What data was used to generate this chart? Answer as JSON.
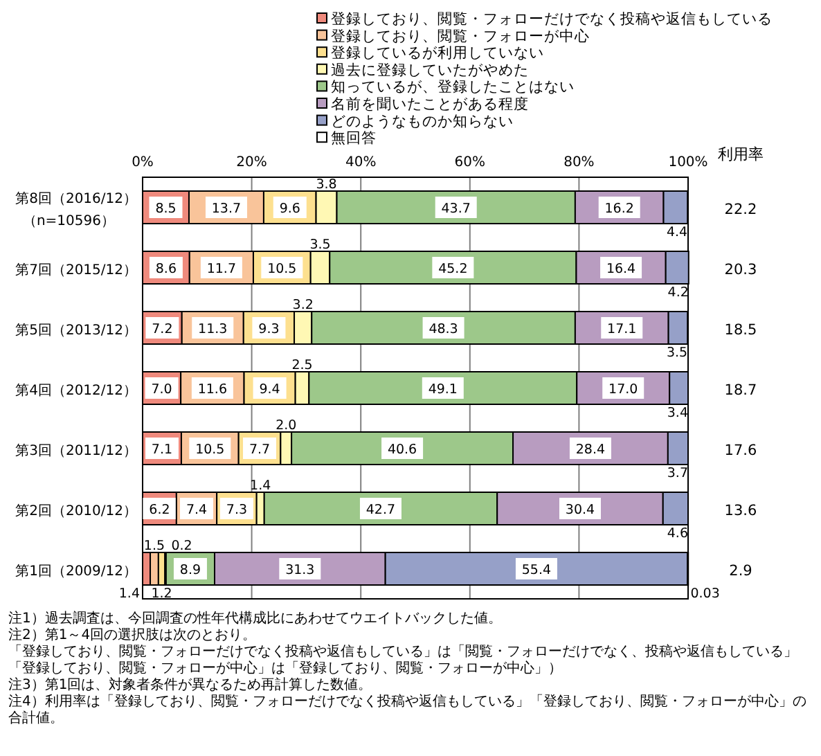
{
  "chart_data": [
    {
      "type": "bar",
      "orientation": "horizontal",
      "stacked": true,
      "categories": [
        "第8回（2016/12）（n=10596）",
        "第7回（2015/12）",
        "第5回（2013/12）",
        "第4回（2012/12）",
        "第3回（2011/12）",
        "第2回（2010/12）",
        "第1回（2009/12）"
      ],
      "series": [
        {
          "name": "登録しており、閲覧・フォローだけでなく投稿や返信もしている",
          "color": "#ef8a7d",
          "values": [
            8.5,
            8.6,
            7.2,
            7.0,
            7.1,
            6.2,
            1.4
          ],
          "value_labels": [
            "8.5",
            "8.6",
            "7.2",
            "7.0",
            "7.1",
            "6.2",
            "1.4"
          ]
        },
        {
          "name": "登録しており、閲覧・フォローが中心",
          "color": "#f9c49a",
          "values": [
            13.7,
            11.7,
            11.3,
            11.6,
            10.5,
            7.4,
            1.5
          ],
          "value_labels": [
            "13.7",
            "11.7",
            "11.3",
            "11.6",
            "10.5",
            "7.4",
            "1.5"
          ]
        },
        {
          "name": "登録しているが利用していない",
          "color": "#fde08f",
          "values": [
            9.6,
            10.5,
            9.3,
            9.4,
            7.7,
            7.3,
            1.2
          ],
          "value_labels": [
            "9.6",
            "10.5",
            "9.3",
            "9.4",
            "7.7",
            "7.3",
            "1.2"
          ]
        },
        {
          "name": "過去に登録していたがやめた",
          "color": "#fff8b4",
          "values": [
            3.8,
            3.5,
            3.2,
            2.5,
            2.0,
            1.4,
            0.2
          ],
          "value_labels": [
            "3.8",
            "3.5",
            "3.2",
            "2.5",
            "2.0",
            "1.4",
            "0.2"
          ]
        },
        {
          "name": "知っているが、登録したことはない",
          "color": "#9dc88a",
          "values": [
            43.7,
            45.2,
            48.3,
            49.1,
            40.6,
            42.7,
            8.9
          ],
          "value_labels": [
            "43.7",
            "45.2",
            "48.3",
            "49.1",
            "40.6",
            "42.7",
            "8.9"
          ]
        },
        {
          "name": "名前を聞いたことがある程度",
          "color": "#b89cc0",
          "values": [
            16.2,
            16.4,
            17.1,
            17.0,
            28.4,
            30.4,
            31.3
          ],
          "value_labels": [
            "16.2",
            "16.4",
            "17.1",
            "17.0",
            "28.4",
            "30.4",
            "31.3"
          ]
        },
        {
          "name": "どのようなものか知らない",
          "color": "#96a0c8",
          "values": [
            4.4,
            4.2,
            3.5,
            3.4,
            3.7,
            4.6,
            55.4
          ],
          "value_labels": [
            "4.4",
            "4.2",
            "3.5",
            "3.4",
            "3.7",
            "4.6",
            "55.4"
          ]
        },
        {
          "name": "無回答",
          "color": "#ffffff",
          "values": [
            null,
            null,
            null,
            null,
            null,
            null,
            0.03
          ],
          "value_labels": [
            null,
            null,
            null,
            null,
            null,
            null,
            "0.03"
          ]
        }
      ],
      "xlim": [
        0,
        100
      ],
      "xticks": [
        {
          "value": 0,
          "label": "0%"
        },
        {
          "value": 20,
          "label": "20%"
        },
        {
          "value": 40,
          "label": "40%"
        },
        {
          "value": 60,
          "label": "60%"
        },
        {
          "value": 80,
          "label": "80%"
        },
        {
          "value": 100,
          "label": "100%"
        }
      ],
      "grid": "x",
      "legend": "top",
      "annotations": [
        "注1）過去調査は、今回調査の性年代構成比にあわせてウエイトバックした値。",
        "注2）第1～4回の選択肢は次のとおり。",
        "「登録しており、閲覧・フォローだけでなく投稿や返信もしている」は「閲覧・フォローだけでなく、投稿や返信もしている」",
        "「登録しており、閲覧・フォローが中心」は「登録しており、閲覧・フォローが中心」）",
        "注3）第1回は、対象者条件が異なるため再計算した数値。",
        "注4）利用率は「登録しており、閲覧・フォローだけでなく投稿や返信もしている」「登録しており、閲覧・フォローが中心」の合計値。"
      ]
    },
    {
      "type": "other",
      "title": "利用率",
      "values": [
        22.2,
        20.3,
        18.5,
        18.7,
        17.6,
        13.6,
        2.9
      ],
      "data_labels": true
    }
  ]
}
